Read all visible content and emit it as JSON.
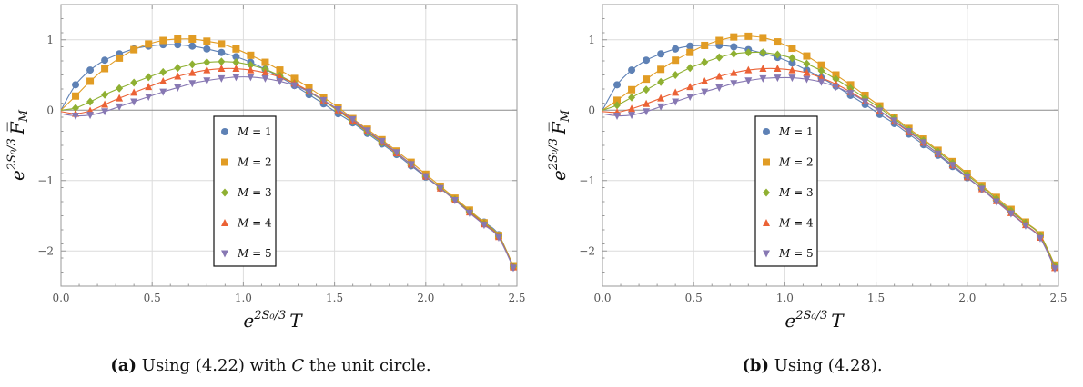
{
  "chart_data": [
    {
      "type": "line",
      "id": "a",
      "caption_tag": "(a)",
      "caption_before": "Using (4.22) with ",
      "caption_var": "C",
      "caption_after": " the unit circle.",
      "xlabel_base": "e",
      "xlabel_sup": "2S₀/3",
      "xlabel_var": "T",
      "ylabel_base": "e",
      "ylabel_sup": "2S₀/3",
      "ylabel_var": "F̅",
      "ylabel_sub": "M",
      "xlim": [
        0,
        2.5
      ],
      "ylim": [
        -2.5,
        1.5
      ],
      "xticks": [
        "0.0",
        "0.5",
        "1.0",
        "1.5",
        "2.0",
        "2.5"
      ],
      "yticks": [
        "−2",
        "−1",
        "0",
        "1"
      ],
      "legend_position": "center",
      "grid": true,
      "series": [
        {
          "name": "M = 1",
          "name_var": "M",
          "name_rest": " = 1",
          "marker": "circle",
          "color": "#5e81b5",
          "x": [
            0.0,
            0.08,
            0.16,
            0.24,
            0.32,
            0.4,
            0.48,
            0.56,
            0.64,
            0.72,
            0.8,
            0.88,
            0.96,
            1.04,
            1.12,
            1.2,
            1.28,
            1.36,
            1.44,
            1.52,
            1.6,
            1.68,
            1.76,
            1.84,
            1.92,
            2.0,
            2.08,
            2.16,
            2.24,
            2.32,
            2.4,
            2.48
          ],
          "y": [
            0.0,
            0.36,
            0.57,
            0.71,
            0.8,
            0.87,
            0.91,
            0.93,
            0.93,
            0.91,
            0.87,
            0.82,
            0.76,
            0.68,
            0.58,
            0.47,
            0.35,
            0.22,
            0.09,
            -0.05,
            -0.18,
            -0.33,
            -0.48,
            -0.63,
            -0.79,
            -0.95,
            -1.11,
            -1.27,
            -1.43,
            -1.59,
            -1.77,
            -2.23
          ]
        },
        {
          "name": "M = 2",
          "name_var": "M",
          "name_rest": " = 2",
          "marker": "square",
          "color": "#e19c24",
          "x": [
            0.0,
            0.08,
            0.16,
            0.24,
            0.32,
            0.4,
            0.48,
            0.56,
            0.64,
            0.72,
            0.8,
            0.88,
            0.96,
            1.04,
            1.12,
            1.2,
            1.28,
            1.36,
            1.44,
            1.52,
            1.6,
            1.68,
            1.76,
            1.84,
            1.92,
            2.0,
            2.08,
            2.16,
            2.24,
            2.32,
            2.4,
            2.48
          ],
          "y": [
            0.0,
            0.2,
            0.41,
            0.59,
            0.74,
            0.86,
            0.94,
            0.99,
            1.01,
            1.01,
            0.98,
            0.94,
            0.87,
            0.78,
            0.68,
            0.57,
            0.45,
            0.32,
            0.18,
            0.04,
            -0.12,
            -0.27,
            -0.42,
            -0.58,
            -0.74,
            -0.91,
            -1.08,
            -1.25,
            -1.42,
            -1.6,
            -1.78,
            -2.21
          ]
        },
        {
          "name": "M = 3",
          "name_var": "M",
          "name_rest": " = 3",
          "marker": "diamond",
          "color": "#8fb032",
          "x": [
            0.0,
            0.08,
            0.16,
            0.24,
            0.32,
            0.4,
            0.48,
            0.56,
            0.64,
            0.72,
            0.8,
            0.88,
            0.96,
            1.04,
            1.12,
            1.2,
            1.28,
            1.36,
            1.44,
            1.52,
            1.6,
            1.68,
            1.76,
            1.84,
            1.92,
            2.0,
            2.08,
            2.16,
            2.24,
            2.32,
            2.4,
            2.48
          ],
          "y": [
            0.0,
            0.03,
            0.12,
            0.22,
            0.31,
            0.39,
            0.47,
            0.54,
            0.6,
            0.65,
            0.68,
            0.69,
            0.68,
            0.64,
            0.58,
            0.49,
            0.38,
            0.26,
            0.13,
            -0.01,
            -0.16,
            -0.31,
            -0.46,
            -0.61,
            -0.77,
            -0.94,
            -1.1,
            -1.27,
            -1.44,
            -1.61,
            -1.79,
            -2.22
          ]
        },
        {
          "name": "M = 4",
          "name_var": "M",
          "name_rest": " = 4",
          "marker": "triangle-up",
          "color": "#eb6235",
          "x": [
            0.0,
            0.08,
            0.16,
            0.24,
            0.32,
            0.4,
            0.48,
            0.56,
            0.64,
            0.72,
            0.8,
            0.88,
            0.96,
            1.04,
            1.12,
            1.2,
            1.28,
            1.36,
            1.44,
            1.52,
            1.6,
            1.68,
            1.76,
            1.84,
            1.92,
            2.0,
            2.08,
            2.16,
            2.24,
            2.32,
            2.4,
            2.48
          ],
          "y": [
            -0.02,
            -0.05,
            -0.01,
            0.08,
            0.17,
            0.25,
            0.33,
            0.41,
            0.48,
            0.53,
            0.57,
            0.59,
            0.59,
            0.57,
            0.53,
            0.47,
            0.38,
            0.27,
            0.14,
            0.0,
            -0.15,
            -0.3,
            -0.45,
            -0.61,
            -0.77,
            -0.94,
            -1.11,
            -1.28,
            -1.45,
            -1.62,
            -1.8,
            -2.23
          ]
        },
        {
          "name": "M = 5",
          "name_var": "M",
          "name_rest": " = 5",
          "marker": "triangle-down",
          "color": "#8778b3",
          "x": [
            0.0,
            0.08,
            0.16,
            0.24,
            0.32,
            0.4,
            0.48,
            0.56,
            0.64,
            0.72,
            0.8,
            0.88,
            0.96,
            1.04,
            1.12,
            1.2,
            1.28,
            1.36,
            1.44,
            1.52,
            1.6,
            1.68,
            1.76,
            1.84,
            1.92,
            2.0,
            2.08,
            2.16,
            2.24,
            2.32,
            2.4,
            2.48
          ],
          "y": [
            -0.05,
            -0.08,
            -0.07,
            -0.02,
            0.05,
            0.12,
            0.19,
            0.26,
            0.32,
            0.38,
            0.42,
            0.45,
            0.47,
            0.47,
            0.45,
            0.41,
            0.35,
            0.26,
            0.14,
            0.01,
            -0.13,
            -0.29,
            -0.44,
            -0.6,
            -0.77,
            -0.94,
            -1.11,
            -1.28,
            -1.46,
            -1.63,
            -1.81,
            -2.24
          ]
        }
      ]
    },
    {
      "type": "line",
      "id": "b",
      "caption_tag": "(b)",
      "caption_before": "Using (4.28).",
      "caption_var": "",
      "caption_after": "",
      "xlabel_base": "e",
      "xlabel_sup": "2S₀/3",
      "xlabel_var": "T",
      "ylabel_base": "e",
      "ylabel_sup": "2S₀/3",
      "ylabel_var": "F̅",
      "ylabel_sub": "M",
      "xlim": [
        0,
        2.5
      ],
      "ylim": [
        -2.5,
        1.5
      ],
      "xticks": [
        "0.0",
        "0.5",
        "1.0",
        "1.5",
        "2.0",
        "2.5"
      ],
      "yticks": [
        "−2",
        "−1",
        "0",
        "1"
      ],
      "legend_position": "center",
      "grid": true,
      "series": [
        {
          "name": "M = 1",
          "name_var": "M",
          "name_rest": " = 1",
          "marker": "circle",
          "color": "#5e81b5",
          "x": [
            0.0,
            0.08,
            0.16,
            0.24,
            0.32,
            0.4,
            0.48,
            0.56,
            0.64,
            0.72,
            0.8,
            0.88,
            0.96,
            1.04,
            1.12,
            1.2,
            1.28,
            1.36,
            1.44,
            1.52,
            1.6,
            1.68,
            1.76,
            1.84,
            1.92,
            2.0,
            2.08,
            2.16,
            2.24,
            2.32,
            2.4,
            2.48
          ],
          "y": [
            0.0,
            0.36,
            0.57,
            0.71,
            0.8,
            0.87,
            0.91,
            0.92,
            0.92,
            0.9,
            0.86,
            0.81,
            0.75,
            0.67,
            0.57,
            0.46,
            0.34,
            0.21,
            0.08,
            -0.06,
            -0.19,
            -0.34,
            -0.49,
            -0.64,
            -0.8,
            -0.96,
            -1.12,
            -1.28,
            -1.44,
            -1.6,
            -1.78,
            -2.23
          ]
        },
        {
          "name": "M = 2",
          "name_var": "M",
          "name_rest": " = 2",
          "marker": "square",
          "color": "#e19c24",
          "x": [
            0.0,
            0.08,
            0.16,
            0.24,
            0.32,
            0.4,
            0.48,
            0.56,
            0.64,
            0.72,
            0.8,
            0.88,
            0.96,
            1.04,
            1.12,
            1.2,
            1.28,
            1.36,
            1.44,
            1.52,
            1.6,
            1.68,
            1.76,
            1.84,
            1.92,
            2.0,
            2.08,
            2.16,
            2.24,
            2.32,
            2.4,
            2.48
          ],
          "y": [
            0.0,
            0.14,
            0.29,
            0.44,
            0.58,
            0.71,
            0.82,
            0.92,
            0.99,
            1.04,
            1.05,
            1.03,
            0.97,
            0.88,
            0.77,
            0.64,
            0.5,
            0.36,
            0.21,
            0.06,
            -0.1,
            -0.26,
            -0.41,
            -0.57,
            -0.73,
            -0.9,
            -1.07,
            -1.24,
            -1.41,
            -1.59,
            -1.77,
            -2.2
          ]
        },
        {
          "name": "M = 3",
          "name_var": "M",
          "name_rest": " = 3",
          "marker": "diamond",
          "color": "#8fb032",
          "x": [
            0.0,
            0.08,
            0.16,
            0.24,
            0.32,
            0.4,
            0.48,
            0.56,
            0.64,
            0.72,
            0.8,
            0.88,
            0.96,
            1.04,
            1.12,
            1.2,
            1.28,
            1.36,
            1.44,
            1.52,
            1.6,
            1.68,
            1.76,
            1.84,
            1.92,
            2.0,
            2.08,
            2.16,
            2.24,
            2.32,
            2.4,
            2.48
          ],
          "y": [
            0.0,
            0.07,
            0.18,
            0.29,
            0.4,
            0.5,
            0.6,
            0.68,
            0.75,
            0.8,
            0.82,
            0.82,
            0.79,
            0.74,
            0.66,
            0.56,
            0.44,
            0.31,
            0.17,
            0.03,
            -0.12,
            -0.28,
            -0.43,
            -0.59,
            -0.75,
            -0.92,
            -1.09,
            -1.26,
            -1.43,
            -1.6,
            -1.78,
            -2.21
          ]
        },
        {
          "name": "M = 4",
          "name_var": "M",
          "name_rest": " = 4",
          "marker": "triangle-up",
          "color": "#eb6235",
          "x": [
            0.0,
            0.08,
            0.16,
            0.24,
            0.32,
            0.4,
            0.48,
            0.56,
            0.64,
            0.72,
            0.8,
            0.88,
            0.96,
            1.04,
            1.12,
            1.2,
            1.28,
            1.36,
            1.44,
            1.52,
            1.6,
            1.68,
            1.76,
            1.84,
            1.92,
            2.0,
            2.08,
            2.16,
            2.24,
            2.32,
            2.4,
            2.48
          ],
          "y": [
            -0.02,
            -0.03,
            0.02,
            0.09,
            0.17,
            0.25,
            0.33,
            0.41,
            0.48,
            0.53,
            0.57,
            0.59,
            0.59,
            0.57,
            0.53,
            0.46,
            0.37,
            0.26,
            0.13,
            -0.01,
            -0.16,
            -0.31,
            -0.46,
            -0.62,
            -0.78,
            -0.95,
            -1.12,
            -1.29,
            -1.46,
            -1.63,
            -1.81,
            -2.24
          ]
        },
        {
          "name": "M = 5",
          "name_var": "M",
          "name_rest": " = 5",
          "marker": "triangle-down",
          "color": "#8778b3",
          "x": [
            0.0,
            0.08,
            0.16,
            0.24,
            0.32,
            0.4,
            0.48,
            0.56,
            0.64,
            0.72,
            0.8,
            0.88,
            0.96,
            1.04,
            1.12,
            1.2,
            1.28,
            1.36,
            1.44,
            1.52,
            1.6,
            1.68,
            1.76,
            1.84,
            1.92,
            2.0,
            2.08,
            2.16,
            2.24,
            2.32,
            2.4,
            2.48
          ],
          "y": [
            -0.05,
            -0.08,
            -0.07,
            -0.02,
            0.05,
            0.12,
            0.19,
            0.26,
            0.32,
            0.38,
            0.42,
            0.45,
            0.46,
            0.46,
            0.44,
            0.4,
            0.33,
            0.24,
            0.12,
            -0.01,
            -0.15,
            -0.3,
            -0.46,
            -0.62,
            -0.78,
            -0.95,
            -1.12,
            -1.3,
            -1.47,
            -1.64,
            -1.82,
            -2.25
          ]
        }
      ]
    }
  ]
}
